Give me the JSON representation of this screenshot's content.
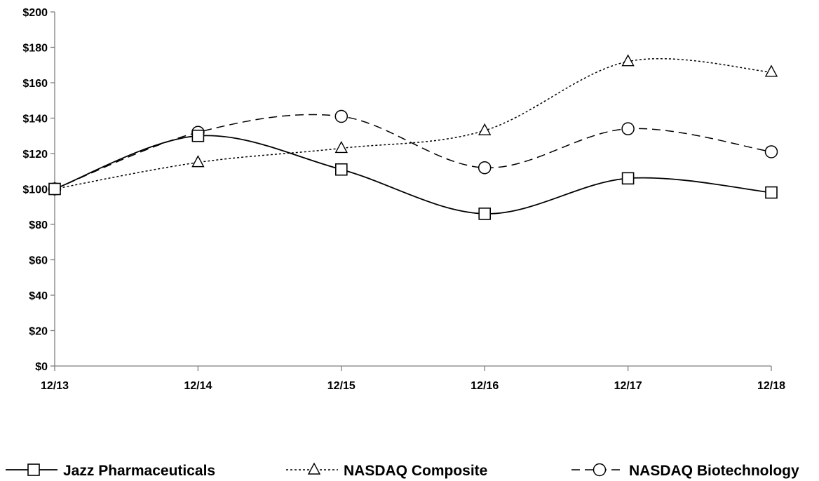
{
  "chart_data": {
    "type": "line",
    "title": "",
    "xlabel": "",
    "ylabel": "",
    "categories": [
      "12/13",
      "12/14",
      "12/15",
      "12/16",
      "12/17",
      "12/18"
    ],
    "ylim": [
      0,
      200
    ],
    "y_ticks": [
      0,
      20,
      40,
      60,
      80,
      100,
      120,
      140,
      160,
      180,
      200
    ],
    "y_tick_labels": [
      "$0",
      "$20",
      "$40",
      "$60",
      "$80",
      "$100",
      "$120",
      "$140",
      "$160",
      "$180",
      "$200"
    ],
    "grid": false,
    "legend_position": "bottom",
    "series": [
      {
        "name": "Jazz Pharmaceuticals",
        "values": [
          100,
          130,
          111,
          86,
          106,
          98
        ],
        "marker": "square",
        "dash": "solid",
        "color": "#000000"
      },
      {
        "name": "NASDAQ Composite",
        "values": [
          100,
          115,
          123,
          133,
          172,
          166
        ],
        "marker": "triangle",
        "dash": "dotted",
        "color": "#000000"
      },
      {
        "name": "NASDAQ Biotechnology",
        "values": [
          100,
          132,
          141,
          112,
          134,
          121
        ],
        "marker": "circle",
        "dash": "dashed",
        "color": "#000000"
      }
    ]
  }
}
